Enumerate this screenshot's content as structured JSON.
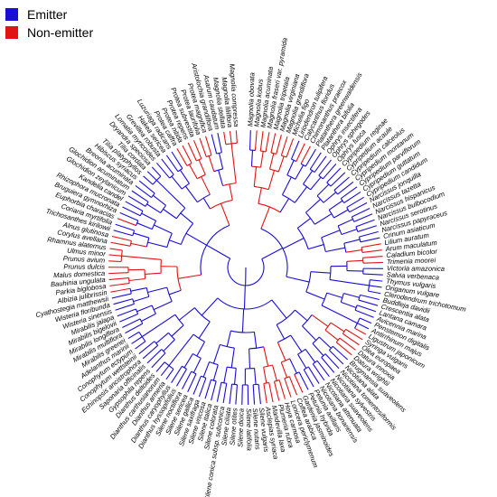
{
  "legend": [
    {
      "label": "Emitter",
      "color": "#1a0dd6"
    },
    {
      "label": "Non-emitter",
      "color": "#e01414"
    }
  ],
  "colors": {
    "emitter": "#1a0dd6",
    "non_emitter": "#e01414"
  },
  "tips": [
    {
      "name": "Magnolia obovata",
      "status": "emitter"
    },
    {
      "name": "Magnolia kobus",
      "status": "non_emitter"
    },
    {
      "name": "Magnolia acuminata",
      "status": "non_emitter"
    },
    {
      "name": "Magnolia fraseri var. pyramida",
      "status": "non_emitter"
    },
    {
      "name": "Magnolia tripetala",
      "status": "non_emitter"
    },
    {
      "name": "Magnolia virginiana",
      "status": "non_emitter"
    },
    {
      "name": "Magnolia grandiflora",
      "status": "non_emitter"
    },
    {
      "name": "Michelia figo",
      "status": "non_emitter"
    },
    {
      "name": "Liriodendron tulipifera",
      "status": "emitter"
    },
    {
      "name": "Calycanthus floridus",
      "status": "non_emitter"
    },
    {
      "name": "Chimonanthus praecox",
      "status": "non_emitter"
    },
    {
      "name": "Platanthera greenwaldensis",
      "status": "emitter"
    },
    {
      "name": "Platanthera bifolia",
      "status": "emitter"
    },
    {
      "name": "Ophrys insectifera",
      "status": "emitter"
    },
    {
      "name": "Ophrys sphegodes",
      "status": "emitter"
    },
    {
      "name": "Ophrys fusca",
      "status": "emitter"
    },
    {
      "name": "Cypripedium reginae",
      "status": "emitter"
    },
    {
      "name": "Cypripedium acaule",
      "status": "emitter"
    },
    {
      "name": "Cypripedium calceolus",
      "status": "emitter"
    },
    {
      "name": "Cypripedium montanum",
      "status": "emitter"
    },
    {
      "name": "Cypripedium parviflorum",
      "status": "emitter"
    },
    {
      "name": "Cypripedium guttatum",
      "status": "emitter"
    },
    {
      "name": "Cypripedium candidum",
      "status": "emitter"
    },
    {
      "name": "Narcissus jonquilla",
      "status": "emitter"
    },
    {
      "name": "Narcissus tazetta",
      "status": "emitter"
    },
    {
      "name": "Narcissus hispanicus",
      "status": "emitter"
    },
    {
      "name": "Narcissus bulbocodium",
      "status": "emitter"
    },
    {
      "name": "Narcissus serotinus",
      "status": "emitter"
    },
    {
      "name": "Narcissus papyraceus",
      "status": "emitter"
    },
    {
      "name": "Crinum asiaticum",
      "status": "emitter"
    },
    {
      "name": "Lilium auratum",
      "status": "non_emitter"
    },
    {
      "name": "Arum maculatum",
      "status": "non_emitter"
    },
    {
      "name": "Caladium bicolor",
      "status": "non_emitter"
    },
    {
      "name": "Trimenia moorei",
      "status": "non_emitter"
    },
    {
      "name": "Victoria amazonica",
      "status": "emitter"
    },
    {
      "name": "Salvia verbenaca",
      "status": "emitter"
    },
    {
      "name": "Thymus vulgaris",
      "status": "emitter"
    },
    {
      "name": "Origanum vulgare",
      "status": "emitter"
    },
    {
      "name": "Clerodendrum trichotomum",
      "status": "emitter"
    },
    {
      "name": "Buddleja davidii",
      "status": "emitter"
    },
    {
      "name": "Crescentia alata",
      "status": "emitter"
    },
    {
      "name": "Lantana camara",
      "status": "emitter"
    },
    {
      "name": "Avicennia marina",
      "status": "emitter"
    },
    {
      "name": "Penstemon digitalis",
      "status": "emitter"
    },
    {
      "name": "Antirrhinum majus",
      "status": "emitter"
    },
    {
      "name": "Ligustrum japonicum",
      "status": "non_emitter"
    },
    {
      "name": "Syringa vulgaris",
      "status": "non_emitter"
    },
    {
      "name": "Olea europaea",
      "status": "non_emitter"
    },
    {
      "name": "Datura innoxia",
      "status": "non_emitter"
    },
    {
      "name": "Datura wrightii",
      "status": "non_emitter"
    },
    {
      "name": "Brugmansia suaveolens",
      "status": "emitter"
    },
    {
      "name": "Nicotiana alata",
      "status": "emitter"
    },
    {
      "name": "Nicotiana tomentosiformis",
      "status": "emitter"
    },
    {
      "name": "Nicotiana sylvestris",
      "status": "emitter"
    },
    {
      "name": "Nicotiana suaveolens",
      "status": "emitter"
    },
    {
      "name": "Nicotiana attenuata",
      "status": "emitter"
    },
    {
      "name": "Nicotiana bonariensis",
      "status": "emitter"
    },
    {
      "name": "Petunia axillaris",
      "status": "emitter"
    },
    {
      "name": "Petunia hybrida",
      "status": "emitter"
    },
    {
      "name": "Gardenia jasminoides",
      "status": "non_emitter"
    },
    {
      "name": "Coffea arabica",
      "status": "non_emitter"
    },
    {
      "name": "Lonicera periclymenum",
      "status": "non_emitter"
    },
    {
      "name": "Hoya carnosa",
      "status": "non_emitter"
    },
    {
      "name": "Plumeria rubra",
      "status": "non_emitter"
    },
    {
      "name": "Mandevilla laxa",
      "status": "non_emitter"
    },
    {
      "name": "Asclepias syriaca",
      "status": "non_emitter"
    },
    {
      "name": "Silene vulgaris",
      "status": "emitter"
    },
    {
      "name": "Silene nutans",
      "status": "emitter"
    },
    {
      "name": "Silene latifolia",
      "status": "emitter"
    },
    {
      "name": "Silene dioica",
      "status": "emitter"
    },
    {
      "name": "Silene otites",
      "status": "emitter"
    },
    {
      "name": "Silene ciliata",
      "status": "emitter"
    },
    {
      "name": "Silene conica subsp. subconica",
      "status": "emitter"
    },
    {
      "name": "Silene colorata",
      "status": "emitter"
    },
    {
      "name": "Silene italica",
      "status": "emitter"
    },
    {
      "name": "Silene viscosa",
      "status": "emitter"
    },
    {
      "name": "Silene saxifraga",
      "status": "emitter"
    },
    {
      "name": "Silene gallica",
      "status": "emitter"
    },
    {
      "name": "Silene sericea",
      "status": "emitter"
    },
    {
      "name": "Silene noctiflora",
      "status": "emitter"
    },
    {
      "name": "Dianthus hyssopifolius",
      "status": "emitter"
    },
    {
      "name": "Dianthus caryophyllus",
      "status": "emitter"
    },
    {
      "name": "Dianthus armeria",
      "status": "emitter"
    },
    {
      "name": "Dianthus carthusianorum",
      "status": "emitter"
    },
    {
      "name": "Dianthus deltoides",
      "status": "emitter"
    },
    {
      "name": "Gypsophila repens",
      "status": "emitter"
    },
    {
      "name": "Saponaria officinalis",
      "status": "emitter"
    },
    {
      "name": "Echinopsis ancistrophora",
      "status": "emitter"
    },
    {
      "name": "Conophytum wettsteinii",
      "status": "emitter"
    },
    {
      "name": "Conophytum ectypum",
      "status": "emitter"
    },
    {
      "name": "Adelanthus marinii",
      "status": "emitter"
    },
    {
      "name": "Mirabilis greenei",
      "status": "emitter"
    },
    {
      "name": "Mirabilis multiflora",
      "status": "emitter"
    },
    {
      "name": "Mirabilis longiflora",
      "status": "emitter"
    },
    {
      "name": "Mirabilis bigelovii",
      "status": "emitter"
    },
    {
      "name": "Mirabilis jalapa",
      "status": "emitter"
    },
    {
      "name": "Wisteria sinensis",
      "status": "emitter"
    },
    {
      "name": "Wisteria floribunda",
      "status": "emitter"
    },
    {
      "name": "Cyathostegia matthewsii",
      "status": "emitter"
    },
    {
      "name": "Albizia julibrissin",
      "status": "non_emitter"
    },
    {
      "name": "Parkia biglobosa",
      "status": "non_emitter"
    },
    {
      "name": "Bauhinia ungulata",
      "status": "non_emitter"
    },
    {
      "name": "Malus domestica",
      "status": "non_emitter"
    },
    {
      "name": "Prunus dulcis",
      "status": "non_emitter"
    },
    {
      "name": "Prunus avium",
      "status": "non_emitter"
    },
    {
      "name": "Ulmus minor",
      "status": "non_emitter"
    },
    {
      "name": "Rhamnus alaternus",
      "status": "non_emitter"
    },
    {
      "name": "Corylus avellana",
      "status": "non_emitter"
    },
    {
      "name": "Alnus glutinosa",
      "status": "non_emitter"
    },
    {
      "name": "Trichosanthes kirilowii",
      "status": "emitter"
    },
    {
      "name": "Coriaria myrtifolia",
      "status": "emitter"
    },
    {
      "name": "Euphorbia characias",
      "status": "non_emitter"
    },
    {
      "name": "Bruguiera gymnorhiza",
      "status": "emitter"
    },
    {
      "name": "Rhizophora mucronata",
      "status": "emitter"
    },
    {
      "name": "Kandelia candel",
      "status": "emitter"
    },
    {
      "name": "Glochidion zeylanicum",
      "status": "emitter"
    },
    {
      "name": "Glochidion acuminatum",
      "status": "emitter"
    },
    {
      "name": "Breonia acuminata",
      "status": "emitter"
    },
    {
      "name": "Hibiscus syriacus",
      "status": "emitter"
    },
    {
      "name": "Tilia platyphyllos",
      "status": "emitter"
    },
    {
      "name": "Tilia cordata",
      "status": "emitter"
    },
    {
      "name": "Dryandra speciosa",
      "status": "emitter"
    },
    {
      "name": "Lomatia myricoides",
      "status": "emitter"
    },
    {
      "name": "Grevillea robusta",
      "status": "emitter"
    },
    {
      "name": "Hakea sericea",
      "status": "emitter"
    },
    {
      "name": "Luzuriaga radicans",
      "status": "emitter"
    },
    {
      "name": "Protea caffra",
      "status": "non_emitter"
    },
    {
      "name": "Protea nitida",
      "status": "non_emitter"
    },
    {
      "name": "Protea repens",
      "status": "non_emitter"
    },
    {
      "name": "Protea subvestita",
      "status": "non_emitter"
    },
    {
      "name": "Protea laurifolia",
      "status": "non_emitter"
    },
    {
      "name": "Protea magnifica",
      "status": "non_emitter"
    },
    {
      "name": "Aristolochia grandiflora",
      "status": "emitter"
    },
    {
      "name": "Asarum caudatum",
      "status": "emitter"
    },
    {
      "name": "Magnolia stellata",
      "status": "non_emitter"
    },
    {
      "name": "Magnolia liliiflora",
      "status": "non_emitter"
    },
    {
      "name": "Magnolia compressa",
      "status": "non_emitter"
    }
  ]
}
